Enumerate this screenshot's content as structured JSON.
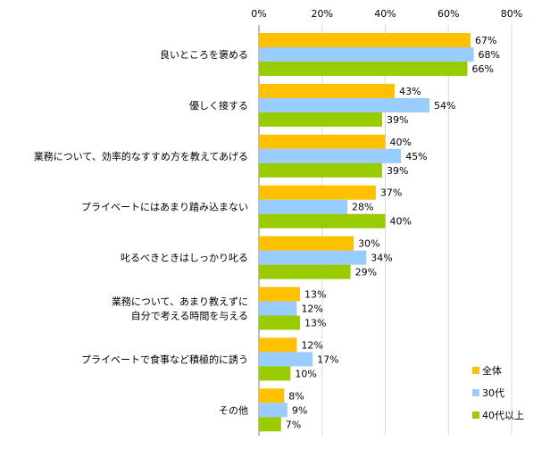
{
  "chart_data": {
    "type": "bar",
    "orientation": "horizontal",
    "xlim": [
      0,
      80
    ],
    "x_ticks": [
      "0%",
      "20%",
      "40%",
      "60%",
      "80%"
    ],
    "grid": true,
    "legend_position": "bottom-right",
    "categories": [
      [
        "良いところを褒める"
      ],
      [
        "優しく接する"
      ],
      [
        "業務について、効率的なすすめ方を教えてあげる"
      ],
      [
        "プライベートにはあまり踏み込まない"
      ],
      [
        "叱るべきときはしっかり叱る"
      ],
      [
        "業務について、あまり教えずに",
        "自分で考える時間を与える"
      ],
      [
        "プライベートで食事など積極的に誘う"
      ],
      [
        "その他"
      ]
    ],
    "series": [
      {
        "name": "全体",
        "color": "#FFC000",
        "values": [
          67,
          43,
          40,
          37,
          30,
          13,
          12,
          8
        ]
      },
      {
        "name": "30代",
        "color": "#99CCFF",
        "values": [
          68,
          54,
          45,
          28,
          34,
          12,
          17,
          9
        ]
      },
      {
        "name": "40代以上",
        "color": "#99CC00",
        "values": [
          66,
          39,
          39,
          40,
          29,
          13,
          10,
          7
        ]
      }
    ],
    "value_suffix": "%"
  }
}
